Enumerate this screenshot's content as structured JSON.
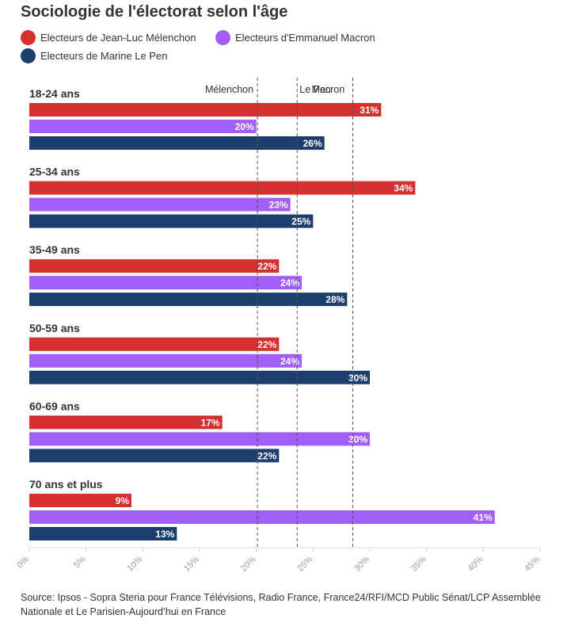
{
  "title": "Sociologie de l'électorat selon l'âge",
  "source": "Source: Ipsos - Sopra Steria pour France Télévisions, Radio France, France24/RFI/MCD Public Sénat/LCP Assemblée Nationale et Le Parisien-Aujourd’hui en France",
  "chart_data": {
    "type": "bar",
    "orientation": "horizontal",
    "title": "Sociologie de l'électorat selon l'âge",
    "categories": [
      "18-24 ans",
      "25-34 ans",
      "35-49 ans",
      "50-59 ans",
      "60-69 ans",
      "70 ans et plus"
    ],
    "series": [
      {
        "name": "Electeurs de Jean-Luc Mélenchon",
        "color": "#d62f2f",
        "values": [
          31,
          34,
          22,
          22,
          17,
          9
        ]
      },
      {
        "name": "Electeurs d'Emmanuel Macron",
        "color": "#a35ef7",
        "values": [
          20,
          23,
          24,
          24,
          30,
          41
        ]
      },
      {
        "name": "Electeurs de Marine Le Pen",
        "color": "#1c3f6e",
        "values": [
          26,
          25,
          28,
          30,
          22,
          13
        ]
      }
    ],
    "value_suffix": "%",
    "xlim": [
      0,
      45
    ],
    "x_ticks": [
      "0%",
      "5%",
      "10%",
      "15%",
      "20%",
      "25%",
      "30%",
      "35%",
      "40%",
      "45%"
    ],
    "reference_lines": [
      {
        "label": "Mélenchon",
        "value": 20.1
      },
      {
        "label": "Le Pen",
        "value": 23.6
      },
      {
        "label": "Macron",
        "value": 28.5
      }
    ],
    "legend_position": "top-left",
    "grid": false
  }
}
